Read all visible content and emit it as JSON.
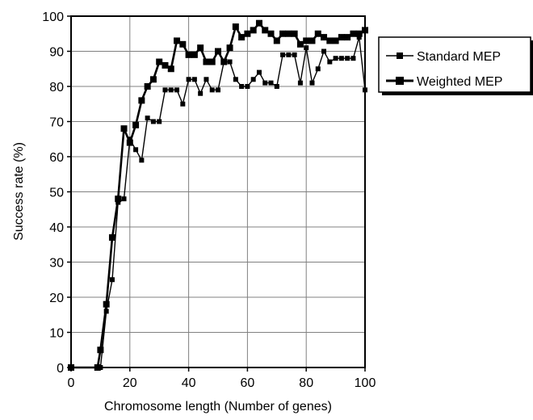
{
  "chart_data": {
    "type": "line",
    "xlabel": "Chromosome length (Number of genes)",
    "ylabel": "Success rate (%)",
    "xlim": [
      0,
      100
    ],
    "ylim": [
      0,
      100
    ],
    "xticks": [
      "0",
      "20",
      "40",
      "60",
      "80",
      "100"
    ],
    "yticks": [
      "0",
      "10",
      "20",
      "30",
      "40",
      "50",
      "60",
      "70",
      "80",
      "90",
      "100"
    ],
    "grid": true,
    "legend_position": "right",
    "colors": {
      "line": "#000000",
      "grid": "#808080",
      "background": "#ffffff"
    },
    "series": [
      {
        "name": "Standard MEP",
        "marker": "small-square",
        "stroke": "thin",
        "x": [
          0,
          10,
          12,
          14,
          16,
          18,
          20,
          22,
          24,
          26,
          28,
          30,
          32,
          34,
          36,
          38,
          40,
          42,
          44,
          46,
          48,
          50,
          52,
          54,
          56,
          58,
          60,
          62,
          64,
          66,
          68,
          70,
          72,
          74,
          76,
          78,
          80,
          82,
          84,
          86,
          88,
          90,
          92,
          94,
          96,
          98,
          100
        ],
        "values": [
          0,
          0,
          16,
          25,
          47,
          48,
          65,
          62,
          59,
          71,
          70,
          70,
          79,
          79,
          79,
          75,
          82,
          82,
          78,
          82,
          79,
          79,
          87,
          87,
          82,
          80,
          80,
          82,
          84,
          81,
          81,
          80,
          89,
          89,
          89,
          81,
          91,
          81,
          85,
          90,
          87,
          88,
          88,
          88,
          88,
          94,
          79
        ]
      },
      {
        "name": "Weighted MEP",
        "marker": "large-square",
        "stroke": "thick",
        "x": [
          0,
          9,
          10,
          12,
          14,
          16,
          18,
          20,
          22,
          24,
          26,
          28,
          30,
          32,
          34,
          36,
          38,
          40,
          42,
          44,
          46,
          48,
          50,
          52,
          54,
          56,
          58,
          60,
          62,
          64,
          66,
          68,
          70,
          72,
          74,
          76,
          78,
          80,
          82,
          84,
          86,
          88,
          90,
          92,
          94,
          96,
          98,
          100
        ],
        "values": [
          0,
          0,
          5,
          18,
          37,
          48,
          68,
          64,
          69,
          76,
          80,
          82,
          87,
          86,
          85,
          93,
          92,
          89,
          89,
          91,
          87,
          87,
          90,
          87,
          91,
          97,
          94,
          95,
          96,
          98,
          96,
          95,
          93,
          95,
          95,
          95,
          92,
          93,
          93,
          95,
          94,
          93,
          93,
          94,
          94,
          95,
          95,
          96
        ]
      }
    ]
  }
}
